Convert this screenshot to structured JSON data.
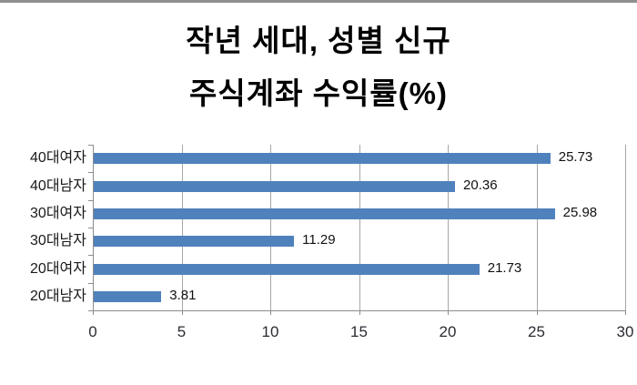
{
  "window": {
    "top_edge_color": "#8f8f8f"
  },
  "title": {
    "line1": "작년 세대, 성별 신규",
    "line2": "주식계좌 수익률(%)"
  },
  "chart_data": {
    "type": "bar",
    "orientation": "horizontal",
    "title": "작년 세대, 성별 신규 주식계좌 수익률(%)",
    "categories": [
      "40대여자",
      "40대남자",
      "30대여자",
      "30대남자",
      "20대여자",
      "20대남자"
    ],
    "values": [
      25.73,
      20.36,
      25.98,
      11.29,
      21.73,
      3.81
    ],
    "value_labels": [
      "25.73",
      "20.36",
      "25.98",
      "11.29",
      "21.73",
      "3.81"
    ],
    "xlabel": "",
    "ylabel": "",
    "xlim": [
      0,
      30
    ],
    "x_ticks": [
      0,
      5,
      10,
      15,
      20,
      25,
      30
    ],
    "grid": "vertical-only",
    "legend": "none",
    "colors": {
      "bar": "#4f81bd",
      "gridline": "#a6a6a6",
      "axis": "#8c8c8c",
      "tick_label": "#2b2b33",
      "category_label": "#1a1a1a",
      "value_label": "#111111",
      "title": "#000000"
    }
  }
}
